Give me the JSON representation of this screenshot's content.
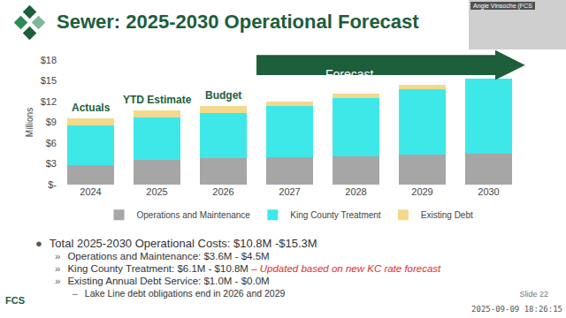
{
  "title": "Sewer: 2025-2030 Operational Forecast",
  "presenter": "Angie Vinsoche (FCS",
  "chart_data": {
    "type": "bar",
    "stacked": true,
    "y_label": "Millions",
    "categories": [
      "2024",
      "2025",
      "2026",
      "2027",
      "2028",
      "2029",
      "2030"
    ],
    "series": [
      {
        "name": "Operations and Maintenance",
        "color": "#a6a6a6",
        "values": [
          2.8,
          3.6,
          3.8,
          3.9,
          4.1,
          4.3,
          4.5
        ]
      },
      {
        "name": "King County Treatment",
        "color": "#3ee8e8",
        "values": [
          5.8,
          6.1,
          6.6,
          7.5,
          8.4,
          9.5,
          10.8
        ]
      },
      {
        "name": "Existing Debt",
        "color": "#f2d98c",
        "values": [
          1.0,
          1.0,
          1.0,
          0.6,
          0.6,
          0.6,
          0.0
        ]
      }
    ],
    "ylim": [
      0,
      18
    ],
    "yticks": [
      {
        "value": 0,
        "label": "$-"
      },
      {
        "value": 3,
        "label": "$3"
      },
      {
        "value": 6,
        "label": "$6"
      },
      {
        "value": 9,
        "label": "$9"
      },
      {
        "value": 12,
        "label": "$12"
      },
      {
        "value": 15,
        "label": "$15"
      },
      {
        "value": 18,
        "label": "$18"
      }
    ],
    "grid": false,
    "legend": "bottom",
    "annotations": [
      {
        "category": "2024",
        "text": "Actuals"
      },
      {
        "category": "2025",
        "text": "YTD Estimate"
      },
      {
        "category": "2026",
        "text": "Budget"
      }
    ],
    "forecast": {
      "text": "Forecast",
      "from": "2027",
      "to": "2030"
    }
  },
  "bullets": [
    {
      "level": 1,
      "bullet": "●",
      "text": "Total 2025-2030 Operational Costs: $10.8M -$15.3M"
    },
    {
      "level": 2,
      "bullet": "»",
      "text": "Operations and Maintenance: $3.6M - $4.5M"
    },
    {
      "level": 2,
      "bullet": "»",
      "text": "King County Treatment: $6.1M - $10.8M",
      "note": "– Updated based on new KC rate forecast"
    },
    {
      "level": 2,
      "bullet": "»",
      "text": "Existing Annual Debt Service: $1.0M - $0.0M"
    },
    {
      "level": 3,
      "bullet": "–",
      "text": "Lake Line debt obligations end in 2026 and 2029"
    }
  ],
  "footer": {
    "logo": "FCS",
    "slide": "Slide 22",
    "timestamp": "2025-09-09 18:26:15"
  }
}
